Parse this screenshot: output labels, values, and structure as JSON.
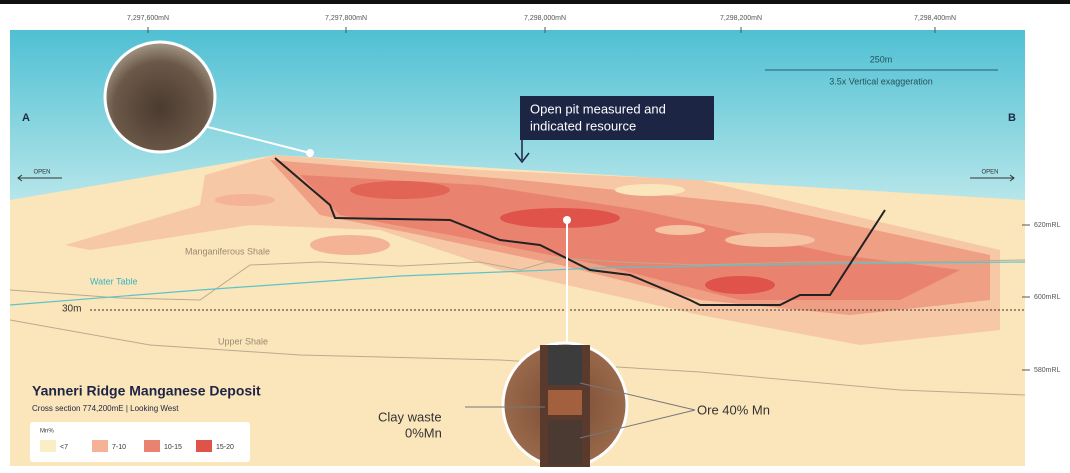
{
  "northings": [
    "7,297,600mN",
    "7,297,800mN",
    "7,298,000mN",
    "7,298,200mN",
    "7,298,400mN"
  ],
  "scale": {
    "length": "250m",
    "exaggeration": "3.5x Vertical exaggeration"
  },
  "section_ends": {
    "left": "A",
    "right": "B",
    "left_open": "OPEN",
    "right_open": "OPEN"
  },
  "callout": {
    "lines": [
      "Open pit measured and",
      "indicated resource"
    ]
  },
  "strata": {
    "manganiferous_shale": "Manganiferous Shale",
    "water_table": "Water Table",
    "depth": "30m",
    "upper_shale": "Upper Shale"
  },
  "elevations": [
    "620mRL",
    "600mRL",
    "580mRL"
  ],
  "title": "Yanneri Ridge Manganese Deposit",
  "subtitle": "Cross section 774,200mE | Looking West",
  "legend": {
    "title": "Mn%",
    "items": [
      {
        "label": "<7",
        "color": "#fbeec4"
      },
      {
        "label": "7-10",
        "color": "#f3b394"
      },
      {
        "label": "10-15",
        "color": "#ea8270"
      },
      {
        "label": "15-20",
        "color": "#e0534a"
      }
    ]
  },
  "core_labels": {
    "clay_lines": [
      "Clay waste",
      "0%Mn"
    ],
    "ore": "Ore 40% Mn"
  }
}
